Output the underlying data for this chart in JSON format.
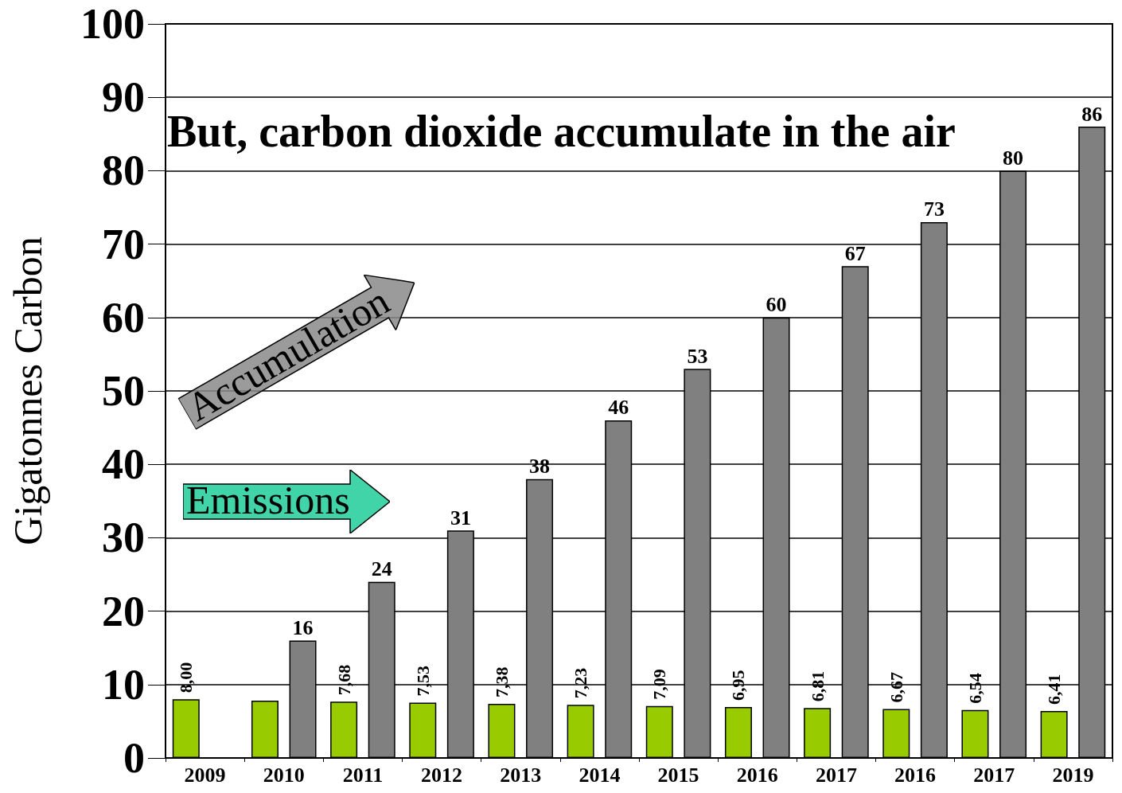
{
  "chart_data": {
    "type": "bar",
    "title": "But, carbon dioxide accumulate in the air",
    "ylabel": "Gigatonnes Carbon",
    "categories": [
      "2009",
      "2010",
      "2011",
      "2012",
      "2013",
      "2014",
      "2015",
      "2016",
      "2017",
      "2016",
      "2017",
      "2019"
    ],
    "series": [
      {
        "name": "Emissions",
        "color": "#99cc00",
        "values": [
          8.0,
          7.8,
          7.68,
          7.53,
          7.38,
          7.23,
          7.09,
          6.95,
          6.81,
          6.67,
          6.54,
          6.41
        ],
        "value_labels": [
          "8,00",
          null,
          "7,68",
          "7,53",
          "7,38",
          "7,23",
          "7,09",
          "6,95",
          "6,81",
          "6,67",
          "6,54",
          "6,41"
        ]
      },
      {
        "name": "Accumulation",
        "color": "#808080",
        "values": [
          null,
          16,
          24,
          31,
          38,
          46,
          53,
          60,
          67,
          73,
          80,
          86
        ],
        "value_labels": [
          null,
          "16",
          "24",
          "31",
          "38",
          "46",
          "53",
          "60",
          "67",
          "73",
          "80",
          "86"
        ]
      }
    ],
    "ylim": [
      0,
      100
    ],
    "yticks": [
      0,
      10,
      20,
      30,
      40,
      50,
      60,
      70,
      80,
      90,
      100
    ],
    "grid": "y",
    "legend": "left"
  }
}
